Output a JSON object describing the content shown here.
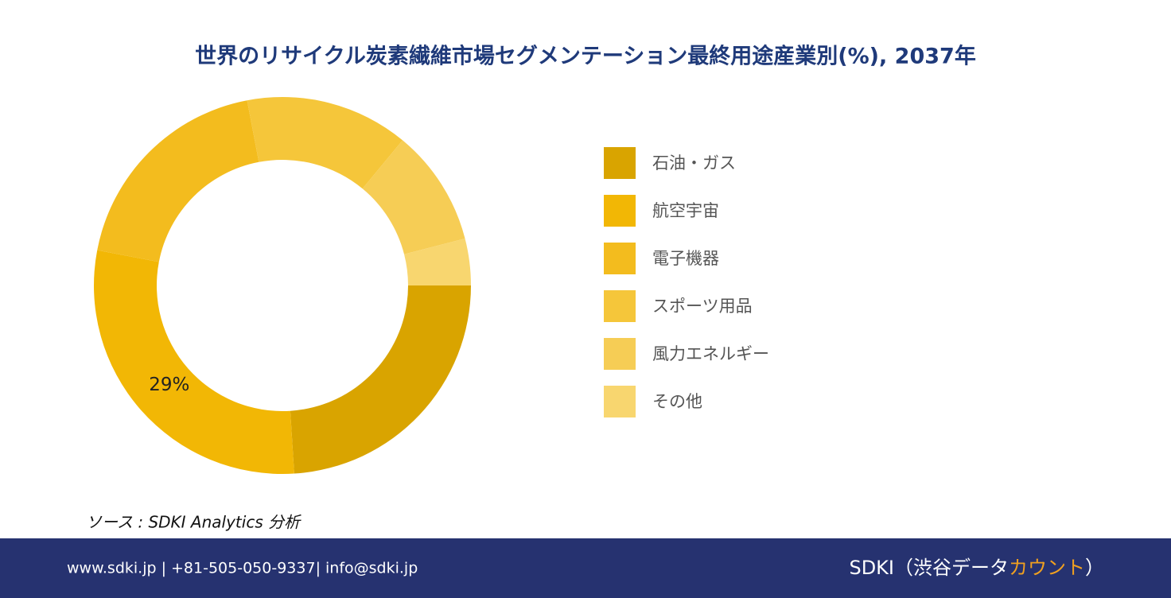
{
  "chart_data": {
    "type": "donut",
    "title": "世界のリサイクル炭素繊維市場セグメンテーション最終用途産業別(%), 2037年",
    "categories": [
      "石油・ガス",
      "航空宇宙",
      "電子機器",
      "スポーツ用品",
      "風力エネルギー",
      "その他"
    ],
    "values": [
      24,
      29,
      19,
      14,
      10,
      4
    ],
    "value_labels": [
      null,
      "29%",
      null,
      null,
      null,
      null
    ],
    "colors": [
      "#D9A400",
      "#F2B705",
      "#F3BC1E",
      "#F5C63A",
      "#F6CD55",
      "#F8D66F"
    ],
    "legend": "right"
  },
  "source": "ソース : SDKI Analytics 分析",
  "footer": {
    "contact": "www.sdki.jp | +81-505-050-9337| info@sdki.jp",
    "brand": "SDKI（渋谷データ",
    "brand_highlight": "カウント",
    "brand_end": "）"
  }
}
